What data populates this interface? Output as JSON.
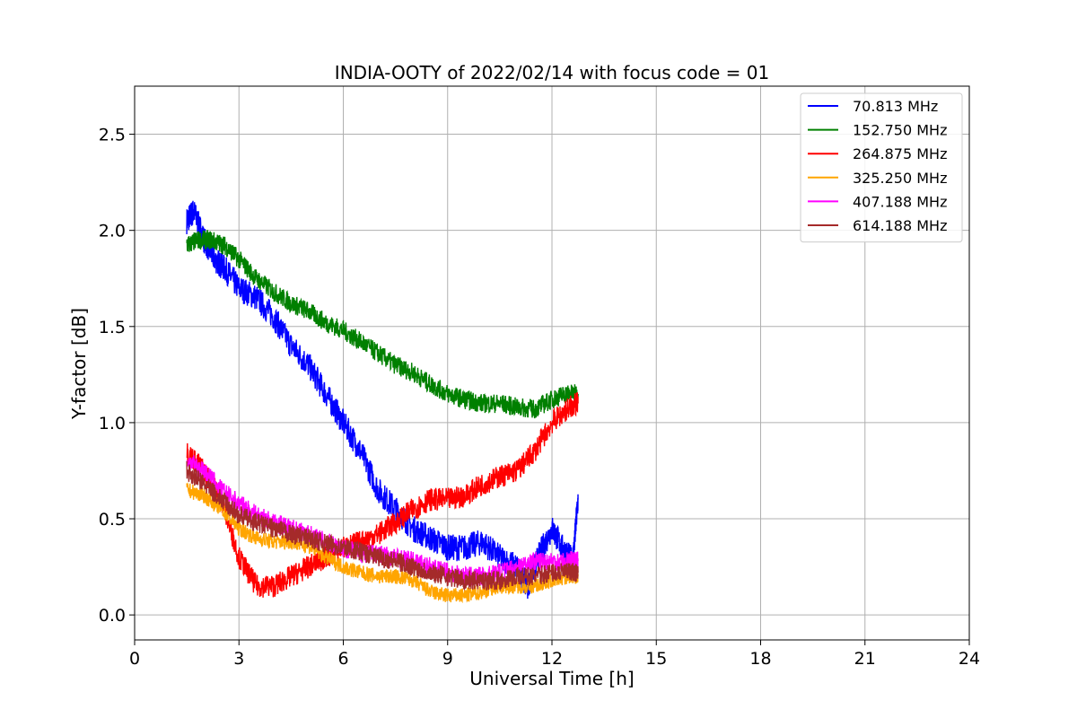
{
  "chart_data": {
    "type": "line",
    "title": "INDIA-OOTY of 2022/02/14 with focus code = 01",
    "xlabel": "Universal Time [h]",
    "ylabel": "Y-factor [dB]",
    "xlim": [
      0,
      24
    ],
    "ylim": [
      -0.13,
      2.75
    ],
    "xticks": [
      0,
      3,
      6,
      9,
      12,
      15,
      18,
      21,
      24
    ],
    "yticks": [
      0.0,
      0.5,
      1.0,
      1.5,
      2.0,
      2.5
    ],
    "xtick_labels": [
      "0",
      "3",
      "6",
      "9",
      "12",
      "15",
      "18",
      "21",
      "24"
    ],
    "ytick_labels": [
      "0.0",
      "0.5",
      "1.0",
      "1.5",
      "2.0",
      "2.5"
    ],
    "grid": true,
    "legend_position": "top-right",
    "series": [
      {
        "name": " 70.813 MHz",
        "color": "#0000ff",
        "x": [
          1.5,
          1.7,
          2.0,
          2.3,
          2.6,
          3.0,
          3.5,
          4.0,
          4.5,
          5.0,
          5.5,
          6.0,
          6.5,
          7.0,
          7.5,
          8.0,
          8.5,
          9.0,
          9.5,
          10.0,
          10.5,
          11.0,
          11.3,
          11.6,
          12.0,
          12.3,
          12.6,
          12.75
        ],
        "y": [
          2.05,
          2.1,
          1.95,
          1.85,
          1.8,
          1.7,
          1.65,
          1.55,
          1.4,
          1.3,
          1.15,
          1.0,
          0.85,
          0.65,
          0.55,
          0.45,
          0.4,
          0.35,
          0.35,
          0.38,
          0.3,
          0.25,
          0.15,
          0.3,
          0.45,
          0.35,
          0.28,
          0.6
        ]
      },
      {
        "name": "152.750 MHz",
        "color": "#008000",
        "x": [
          1.5,
          1.8,
          2.2,
          2.6,
          3.0,
          3.5,
          4.0,
          4.5,
          5.0,
          5.5,
          6.0,
          6.5,
          7.0,
          7.5,
          8.0,
          8.5,
          9.0,
          9.5,
          10.0,
          10.5,
          11.0,
          11.5,
          12.0,
          12.4,
          12.75
        ],
        "y": [
          1.92,
          1.95,
          1.95,
          1.92,
          1.85,
          1.75,
          1.68,
          1.62,
          1.58,
          1.52,
          1.48,
          1.42,
          1.36,
          1.3,
          1.26,
          1.2,
          1.15,
          1.12,
          1.1,
          1.1,
          1.08,
          1.07,
          1.12,
          1.15,
          1.15
        ]
      },
      {
        "name": "264.875 MHz",
        "color": "#ff0000",
        "x": [
          1.5,
          2.0,
          2.5,
          3.0,
          3.5,
          4.0,
          4.5,
          5.0,
          5.5,
          6.0,
          6.5,
          7.0,
          7.5,
          8.0,
          8.5,
          9.0,
          9.5,
          10.0,
          10.5,
          11.0,
          11.5,
          12.0,
          12.5,
          12.75
        ],
        "y": [
          0.85,
          0.75,
          0.6,
          0.3,
          0.15,
          0.15,
          0.2,
          0.25,
          0.3,
          0.35,
          0.38,
          0.42,
          0.48,
          0.55,
          0.6,
          0.6,
          0.62,
          0.68,
          0.72,
          0.75,
          0.85,
          1.0,
          1.08,
          1.1
        ]
      },
      {
        "name": "325.250 MHz",
        "color": "#ffa500",
        "x": [
          1.5,
          2.0,
          2.5,
          3.0,
          3.5,
          4.0,
          4.5,
          5.0,
          5.5,
          6.0,
          6.5,
          7.0,
          7.5,
          8.0,
          8.5,
          9.0,
          9.5,
          10.0,
          10.5,
          11.0,
          11.5,
          12.0,
          12.5,
          12.75
        ],
        "y": [
          0.65,
          0.62,
          0.55,
          0.45,
          0.4,
          0.38,
          0.38,
          0.36,
          0.3,
          0.25,
          0.22,
          0.2,
          0.2,
          0.18,
          0.12,
          0.1,
          0.1,
          0.12,
          0.15,
          0.15,
          0.15,
          0.18,
          0.2,
          0.2
        ]
      },
      {
        "name": "407.188 MHz",
        "color": "#ff00ff",
        "x": [
          1.5,
          2.0,
          2.5,
          3.0,
          3.5,
          4.0,
          4.5,
          5.0,
          5.5,
          6.0,
          6.5,
          7.0,
          7.5,
          8.0,
          8.5,
          9.0,
          9.5,
          10.0,
          10.5,
          11.0,
          11.5,
          12.0,
          12.5,
          12.75
        ],
        "y": [
          0.8,
          0.75,
          0.65,
          0.58,
          0.52,
          0.48,
          0.45,
          0.42,
          0.38,
          0.35,
          0.32,
          0.32,
          0.3,
          0.28,
          0.25,
          0.22,
          0.2,
          0.2,
          0.22,
          0.25,
          0.28,
          0.28,
          0.28,
          0.28
        ]
      },
      {
        "name": "614.188 MHz",
        "color": "#a52a2a",
        "x": [
          1.5,
          2.0,
          2.5,
          3.0,
          3.5,
          4.0,
          4.5,
          5.0,
          5.5,
          6.0,
          6.5,
          7.0,
          7.5,
          8.0,
          8.5,
          9.0,
          9.5,
          10.0,
          10.5,
          11.0,
          11.5,
          12.0,
          12.5,
          12.75
        ],
        "y": [
          0.75,
          0.68,
          0.6,
          0.52,
          0.48,
          0.45,
          0.42,
          0.4,
          0.37,
          0.35,
          0.33,
          0.3,
          0.28,
          0.25,
          0.22,
          0.2,
          0.18,
          0.18,
          0.18,
          0.2,
          0.2,
          0.22,
          0.22,
          0.22
        ]
      }
    ]
  }
}
